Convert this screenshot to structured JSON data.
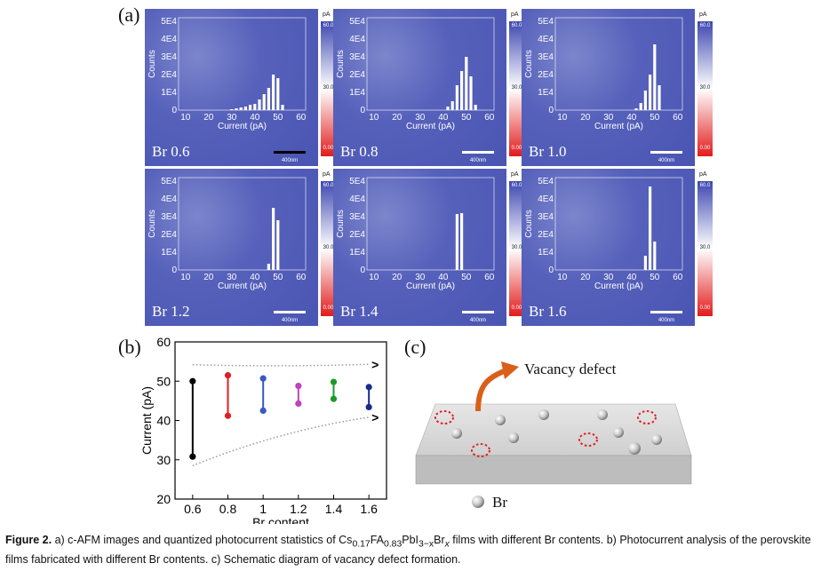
{
  "panel_labels": {
    "a": "(a)",
    "b": "(b)",
    "c": "(c)"
  },
  "afm": {
    "colorbar_unit": "pA",
    "colorbar_ticks": [
      "60.0",
      "30.0",
      "0.00"
    ],
    "scale_bar_label": "400nm",
    "hist_y_ticks": [
      "5E4",
      "4E4",
      "3E4",
      "2E4",
      "1E4",
      "0"
    ],
    "hist_x_ticks": [
      "10",
      "20",
      "30",
      "40",
      "50",
      "60"
    ],
    "hist_xlabel": "Current (pA)",
    "hist_ylabel": "Counts",
    "panels": [
      {
        "sample": "Br 0.6",
        "bars": [
          [
            30,
            0.05
          ],
          [
            32,
            0.1
          ],
          [
            34,
            0.15
          ],
          [
            36,
            0.2
          ],
          [
            38,
            0.3
          ],
          [
            40,
            0.35
          ],
          [
            42,
            0.6
          ],
          [
            44,
            0.9
          ],
          [
            46,
            1.25
          ],
          [
            48,
            2.0
          ],
          [
            50,
            1.8
          ],
          [
            52,
            0.3
          ]
        ]
      },
      {
        "sample": "Br 0.8",
        "bars": [
          [
            42,
            0.2
          ],
          [
            44,
            0.5
          ],
          [
            46,
            1.4
          ],
          [
            48,
            2.2
          ],
          [
            50,
            3.0
          ],
          [
            52,
            1.9
          ],
          [
            54,
            0.3
          ]
        ]
      },
      {
        "sample": "Br 1.0",
        "bars": [
          [
            42,
            0.1
          ],
          [
            44,
            0.4
          ],
          [
            46,
            1.1
          ],
          [
            48,
            2.0
          ],
          [
            50,
            3.7
          ],
          [
            52,
            1.4
          ]
        ]
      },
      {
        "sample": "Br 1.2",
        "bars": [
          [
            46,
            0.35
          ],
          [
            48,
            3.5
          ],
          [
            50,
            2.8
          ]
        ]
      },
      {
        "sample": "Br 1.4",
        "bars": [
          [
            46,
            3.15
          ],
          [
            48,
            3.2
          ]
        ]
      },
      {
        "sample": "Br 1.6",
        "bars": [
          [
            46,
            0.8
          ],
          [
            48,
            4.7
          ],
          [
            50,
            1.6
          ]
        ]
      }
    ]
  },
  "chart_data": {
    "type": "scatter",
    "xlabel": "Br content",
    "ylabel": "Current (pA)",
    "x_ticks": [
      "0.6",
      "0.8",
      "1",
      "1.2",
      "1.4",
      "1.6"
    ],
    "y_ticks": [
      "20",
      "30",
      "40",
      "50",
      "60"
    ],
    "ylim": [
      20,
      60
    ],
    "ranges": [
      {
        "x": 0.6,
        "low": 30.8,
        "high": 50,
        "color": "#000000"
      },
      {
        "x": 0.8,
        "low": 41.2,
        "high": 51.5,
        "color": "#e02020"
      },
      {
        "x": 1.0,
        "low": 42.5,
        "high": 50.7,
        "color": "#3a58c0"
      },
      {
        "x": 1.2,
        "low": 44.3,
        "high": 48.8,
        "color": "#c040c0"
      },
      {
        "x": 1.4,
        "low": 45.5,
        "high": 49.8,
        "color": "#1f9a2a"
      },
      {
        "x": 1.6,
        "low": 43.4,
        "high": 48.5,
        "color": "#1a2a8a"
      }
    ]
  },
  "schematic": {
    "vacancy_label": "Vacancy defect",
    "legend_label": "Br"
  },
  "caption": {
    "figure": "Figure 2.",
    "part1": " a) c-AFM images and quantized photocurrent statistics of Cs",
    "sub1": "0.17",
    "part2": "FA",
    "sub2": "0.83",
    "part3": "PbI",
    "sub3": "3−x",
    "part4": "Br",
    "sub4": "x",
    "part5": " films with different Br contents. b) Photocurrent analysis of the perovskite films fabricated with different Br contents. c) Schematic diagram of vacancy defect formation."
  }
}
